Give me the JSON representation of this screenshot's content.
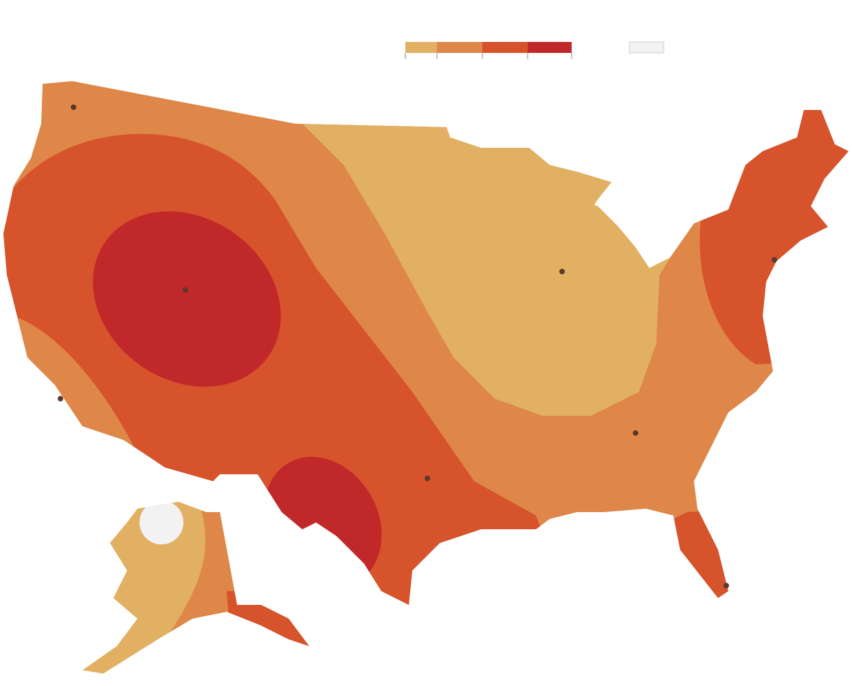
{
  "legend": {
    "colors": [
      "#e2b063",
      "#de8748",
      "#d6532c",
      "#c1282a"
    ],
    "no_data_color": "#f2f2f2"
  }
}
